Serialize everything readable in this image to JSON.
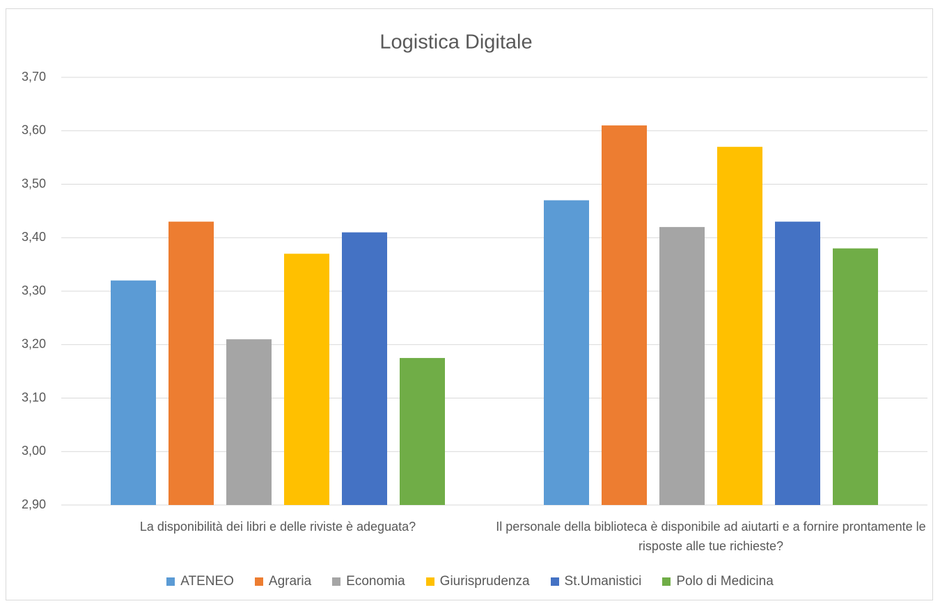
{
  "chart_data": {
    "type": "bar",
    "title": "Logistica Digitale",
    "categories": [
      "La disponibilità dei libri e delle riviste è adeguata?",
      "Il personale della biblioteca è disponibile ad aiutarti e a fornire prontamente le risposte alle tue richieste?"
    ],
    "series": [
      {
        "name": "ATENEO",
        "color": "#5b9bd5",
        "values": [
          3.32,
          3.47
        ]
      },
      {
        "name": "Agraria",
        "color": "#ed7d31",
        "values": [
          3.43,
          3.61
        ]
      },
      {
        "name": "Economia",
        "color": "#a5a5a5",
        "values": [
          3.21,
          3.42
        ]
      },
      {
        "name": "Giurisprudenza",
        "color": "#ffc000",
        "values": [
          3.37,
          3.57
        ]
      },
      {
        "name": "St.Umanistici",
        "color": "#4472c4",
        "values": [
          3.41,
          3.43
        ]
      },
      {
        "name": "Polo di Medicina",
        "color": "#70ad47",
        "values": [
          3.175,
          3.38
        ]
      }
    ],
    "ylim": [
      2.9,
      3.7
    ],
    "yticks": [
      {
        "value": 2.9,
        "label": "2,90"
      },
      {
        "value": 3.0,
        "label": "3,00"
      },
      {
        "value": 3.1,
        "label": "3,10"
      },
      {
        "value": 3.2,
        "label": "3,20"
      },
      {
        "value": 3.3,
        "label": "3,30"
      },
      {
        "value": 3.4,
        "label": "3,40"
      },
      {
        "value": 3.5,
        "label": "3,50"
      },
      {
        "value": 3.6,
        "label": "3,60"
      },
      {
        "value": 3.7,
        "label": "3,70"
      }
    ],
    "grid": true,
    "legend": "bottom"
  }
}
